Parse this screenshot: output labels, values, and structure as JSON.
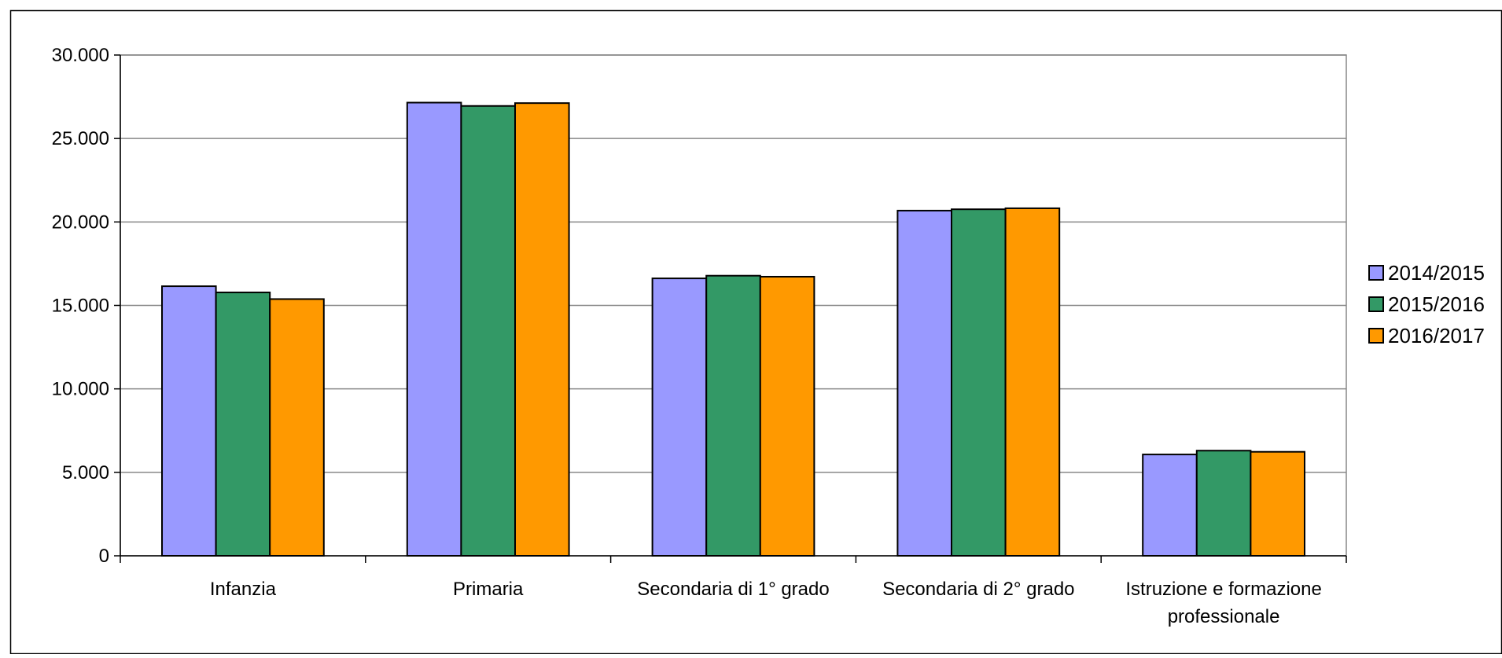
{
  "chart_data": {
    "type": "bar",
    "title": "",
    "xlabel": "",
    "ylabel": "",
    "categories": [
      [
        "Infanzia"
      ],
      [
        "Primaria"
      ],
      [
        "Secondaria di 1° grado"
      ],
      [
        "Secondaria di 2° grado"
      ],
      [
        "Istruzione e formazione",
        "professionale"
      ]
    ],
    "series": [
      {
        "name": "2014/2015",
        "color": "#9999FF",
        "values": [
          16150,
          27150,
          16620,
          20680,
          6070
        ]
      },
      {
        "name": "2015/2016",
        "color": "#339966",
        "values": [
          15780,
          26950,
          16780,
          20760,
          6300
        ]
      },
      {
        "name": "2016/2017",
        "color": "#FF9900",
        "values": [
          15380,
          27120,
          16720,
          20820,
          6230
        ]
      }
    ],
    "ylim": [
      0,
      30000
    ],
    "yticks": [
      0,
      5000,
      10000,
      15000,
      20000,
      25000,
      30000
    ],
    "ytick_labels": [
      "0",
      "5.000",
      "10.000",
      "15.000",
      "20.000",
      "25.000",
      "30.000"
    ],
    "grid": true,
    "legend_position": "right"
  }
}
